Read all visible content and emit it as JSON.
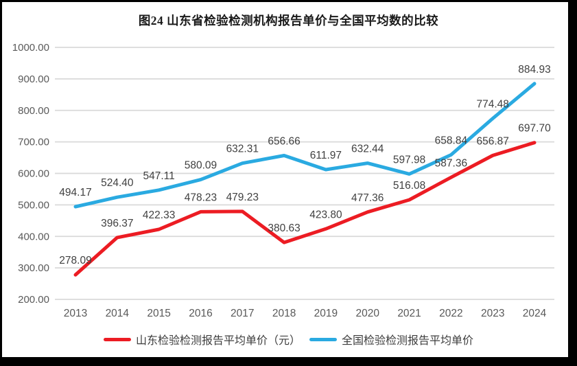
{
  "figure": {
    "title": "图24  山东省检验检测机构报告单价与全国平均数的比较"
  },
  "colors": {
    "shandong_red": "#ec1c23",
    "national_blue": "#2aaae1",
    "gridline": "#d9d9d9",
    "axis_text": "#595959",
    "data_label": "#404040",
    "title_text": "#1a1a1a",
    "legend_text": "#3d3d3d",
    "frame": "#000000",
    "background": "#ffffff"
  },
  "chart_data": {
    "type": "line",
    "title": "图24  山东省检验检测机构报告单价与全国平均数的比较",
    "categories": [
      "2013",
      "2014",
      "2015",
      "2016",
      "2017",
      "2018",
      "2019",
      "2020",
      "2021",
      "2022",
      "2023",
      "2024"
    ],
    "series": [
      {
        "name": "山东检验检测报告平均单价（元）",
        "color": "#ec1c23",
        "values": [
          278.09,
          396.37,
          422.33,
          478.23,
          479.23,
          380.63,
          423.8,
          477.36,
          516.08,
          587.36,
          656.87,
          697.7
        ]
      },
      {
        "name": "全国检验检测报告平均单价",
        "color": "#2aaae1",
        "values": [
          494.17,
          524.4,
          547.11,
          580.09,
          632.31,
          656.66,
          611.97,
          632.44,
          597.98,
          658.84,
          774.48,
          884.93
        ]
      }
    ],
    "ylim": [
      200,
      1000
    ],
    "ytick_step": 100,
    "ytick_decimals": 2,
    "xlabel": "",
    "ylabel": "",
    "grid": true,
    "data_labels": true,
    "legend_position": "bottom"
  }
}
